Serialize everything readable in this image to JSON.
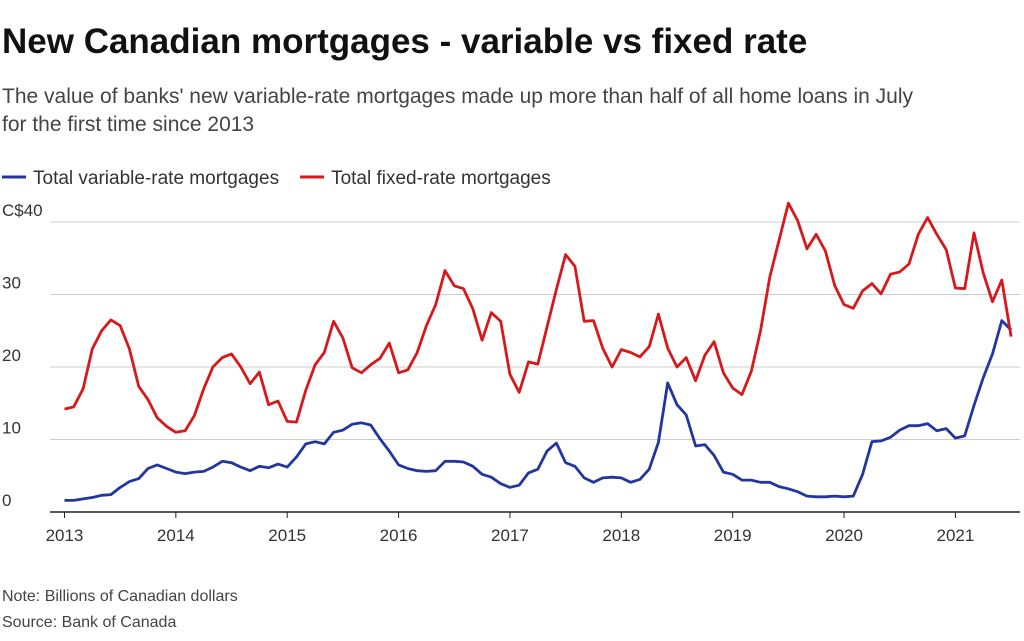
{
  "chart_data": {
    "type": "line",
    "title": "New Canadian mortgages - variable vs fixed rate",
    "subtitle": "The value of banks' new variable-rate mortgages made up more than half of all home loans in July for the first time since 2013",
    "note": "Note: Billions of Canadian dollars",
    "source": "Source: Bank of Canada",
    "x": [
      2013,
      2013.083,
      2013.167,
      2013.25,
      2013.333,
      2013.417,
      2013.5,
      2013.583,
      2013.667,
      2013.75,
      2013.833,
      2013.917,
      2014,
      2014.083,
      2014.167,
      2014.25,
      2014.333,
      2014.417,
      2014.5,
      2014.583,
      2014.667,
      2014.75,
      2014.833,
      2014.917,
      2015,
      2015.083,
      2015.167,
      2015.25,
      2015.333,
      2015.417,
      2015.5,
      2015.583,
      2015.667,
      2015.75,
      2015.833,
      2015.917,
      2016,
      2016.083,
      2016.167,
      2016.25,
      2016.333,
      2016.417,
      2016.5,
      2016.583,
      2016.667,
      2016.75,
      2016.833,
      2016.917,
      2017,
      2017.083,
      2017.167,
      2017.25,
      2017.333,
      2017.417,
      2017.5,
      2017.583,
      2017.667,
      2017.75,
      2017.833,
      2017.917,
      2018,
      2018.083,
      2018.167,
      2018.25,
      2018.333,
      2018.417,
      2018.5,
      2018.583,
      2018.667,
      2018.75,
      2018.833,
      2018.917,
      2019,
      2019.083,
      2019.167,
      2019.25,
      2019.333,
      2019.417,
      2019.5,
      2019.583,
      2019.667,
      2019.75,
      2019.833,
      2019.917,
      2020,
      2020.083,
      2020.167,
      2020.25,
      2020.333,
      2020.417,
      2020.5,
      2020.583,
      2020.667,
      2020.75,
      2020.833,
      2020.917,
      2021,
      2021.083,
      2021.167,
      2021.25,
      2021.333,
      2021.417,
      2021.5
    ],
    "series": [
      {
        "name": "Total variable-rate mortgages",
        "color": "#2336a0",
        "values": [
          1.6,
          1.6,
          1.8,
          2,
          2.3,
          2.4,
          3.4,
          4.2,
          4.6,
          6,
          6.5,
          6,
          5.5,
          5.3,
          5.5,
          5.6,
          6.2,
          7,
          6.8,
          6.2,
          5.7,
          6.3,
          6.1,
          6.6,
          6.2,
          7.6,
          9.4,
          9.7,
          9.4,
          11,
          11.3,
          12.1,
          12.3,
          12,
          10.1,
          8.4,
          6.5,
          6,
          5.7,
          5.6,
          5.7,
          7,
          7,
          6.9,
          6.3,
          5.2,
          4.8,
          3.9,
          3.4,
          3.7,
          5.4,
          5.9,
          8.4,
          9.5,
          6.8,
          6.3,
          4.7,
          4.1,
          4.7,
          4.8,
          4.7,
          4.1,
          4.5,
          5.9,
          9.6,
          17.8,
          14.8,
          13.4,
          9.1,
          9.3,
          7.8,
          5.5,
          5.2,
          4.4,
          4.4,
          4.1,
          4.1,
          3.5,
          3.2,
          2.8,
          2.2,
          2.1,
          2.1,
          2.2,
          2.1,
          2.2,
          5.2,
          9.7,
          9.8,
          10.3,
          11.3,
          11.9,
          11.9,
          12.2,
          11.2,
          11.5,
          10.2,
          10.5,
          14.7,
          18.5,
          21.8,
          26.4,
          25.1
        ]
      },
      {
        "name": "Total fixed-rate mortgages",
        "color": "#d7191c",
        "values": [
          14.2,
          14.5,
          17,
          22.5,
          25,
          26.5,
          25.7,
          22.5,
          17.3,
          15.5,
          13,
          11.8,
          11,
          11.2,
          13.3,
          17,
          20,
          21.3,
          21.8,
          20,
          17.7,
          19.3,
          14.8,
          15.3,
          12.5,
          12.4,
          16.8,
          20.3,
          22,
          26.3,
          24,
          19.9,
          19.2,
          20.3,
          21.2,
          23.3,
          19.2,
          19.6,
          22,
          25.7,
          28.6,
          33.3,
          31.2,
          30.8,
          28,
          23.7,
          27.5,
          26.3,
          19,
          16.5,
          20.7,
          20.4,
          25.5,
          30.7,
          35.5,
          33.9,
          26.3,
          26.4,
          22.6,
          20,
          22.4,
          22,
          21.4,
          22.8,
          27.3,
          22.6,
          20,
          21.3,
          18.1,
          21.6,
          23.5,
          19.2,
          17.1,
          16.2,
          19.4,
          25,
          32.4,
          37.5,
          42.6,
          40.2,
          36.3,
          38.3,
          36,
          31.2,
          28.6,
          28.1,
          30.5,
          31.5,
          30.1,
          32.8,
          33.1,
          34.2,
          38.3,
          40.6,
          38.3,
          36.2,
          30.9,
          30.8,
          38.5,
          33,
          29,
          32,
          24.2
        ]
      }
    ],
    "xlim": [
      2012.87,
      2021.58
    ],
    "xticks": [
      2013,
      2014,
      2015,
      2016,
      2017,
      2018,
      2019,
      2020,
      2021
    ],
    "ylim": [
      0,
      40
    ],
    "yticks": [
      0,
      10,
      20,
      30,
      {
        "value": 40,
        "label": "C$40"
      }
    ],
    "grid": true
  }
}
